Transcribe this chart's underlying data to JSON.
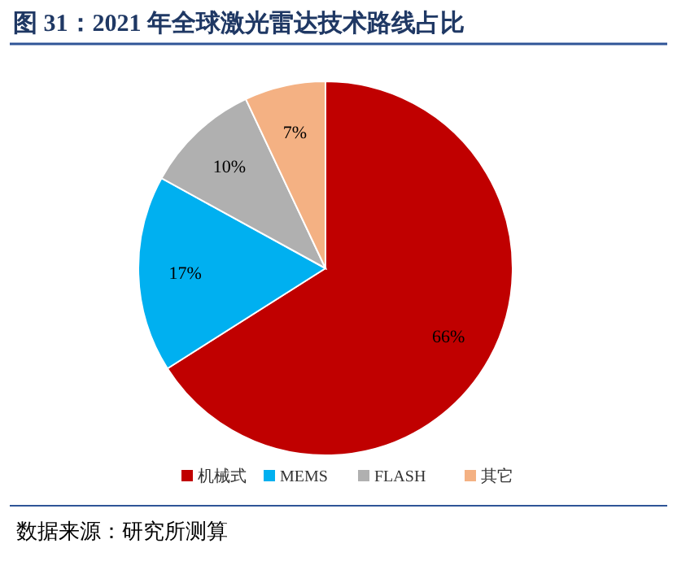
{
  "chart_data": {
    "type": "pie",
    "title": "图 31：2021 年全球激光雷达技术路线占比",
    "categories": [
      "机械式",
      "MEMS",
      "FLASH",
      "其它"
    ],
    "values": [
      66,
      17,
      10,
      7
    ],
    "colors": [
      "#c00000",
      "#00b0f0",
      "#b0b0b0",
      "#f4b183"
    ],
    "value_labels": [
      "66%",
      "17%",
      "10%",
      "7%"
    ],
    "legend": "bottom",
    "annotations": [
      "数据来源：研究所测算"
    ]
  }
}
